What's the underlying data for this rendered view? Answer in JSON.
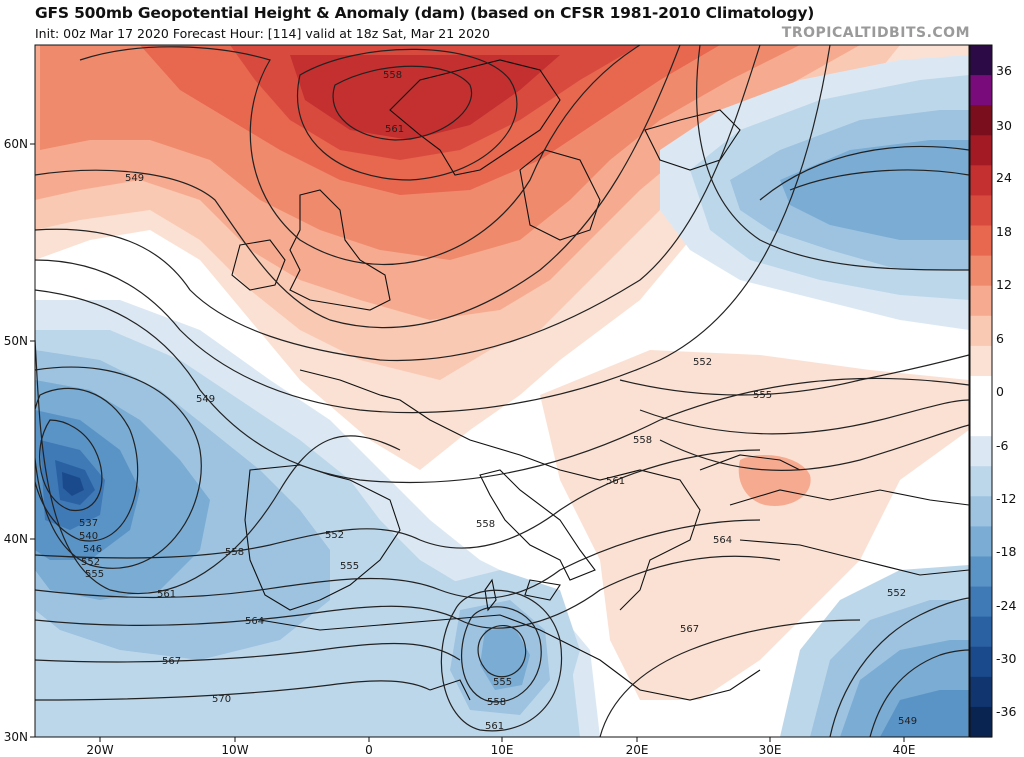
{
  "header": {
    "title": "GFS 500mb Geopotential Height & Anomaly (dam) (based on CFSR 1981-2010 Climatology)",
    "subtitle": "Init: 00z Mar 17 2020   Forecast Hour: [114]   valid at 18z Sat, Mar 21 2020",
    "brand": "TROPICALTIDBITS.COM"
  },
  "map": {
    "lat_labels": [
      "60N",
      "50N",
      "40N",
      "30N"
    ],
    "lon_labels": [
      "20W",
      "10W",
      "0",
      "10E",
      "20E",
      "30E",
      "40E"
    ],
    "contour_labels": [
      "558",
      "561",
      "549",
      "552",
      "555",
      "558",
      "549",
      "537",
      "540",
      "546",
      "552",
      "555",
      "552",
      "555",
      "558",
      "561",
      "564",
      "567",
      "570",
      "558",
      "555",
      "558",
      "561",
      "561",
      "564",
      "567",
      "552",
      "549"
    ]
  },
  "colorbar": {
    "ticks": [
      "36",
      "30",
      "24",
      "18",
      "12",
      "6",
      "0",
      "-6",
      "-12",
      "-18",
      "-24",
      "-30",
      "-36"
    ],
    "colors": [
      "#2b0a46",
      "#7a0b7a",
      "#7a0e1c",
      "#a31a24",
      "#c42f30",
      "#d84a3e",
      "#e8674f",
      "#f08a6d",
      "#f6ab90",
      "#f9c9b3",
      "#fbe1d3",
      "#ffffff",
      "#ffffff",
      "#dbe8f3",
      "#bdd7ea",
      "#9dc3e0",
      "#7aacd4",
      "#5a93c5",
      "#3f79b6",
      "#2a61a3",
      "#1a4a8c",
      "#10356f",
      "#0a2452"
    ]
  }
}
